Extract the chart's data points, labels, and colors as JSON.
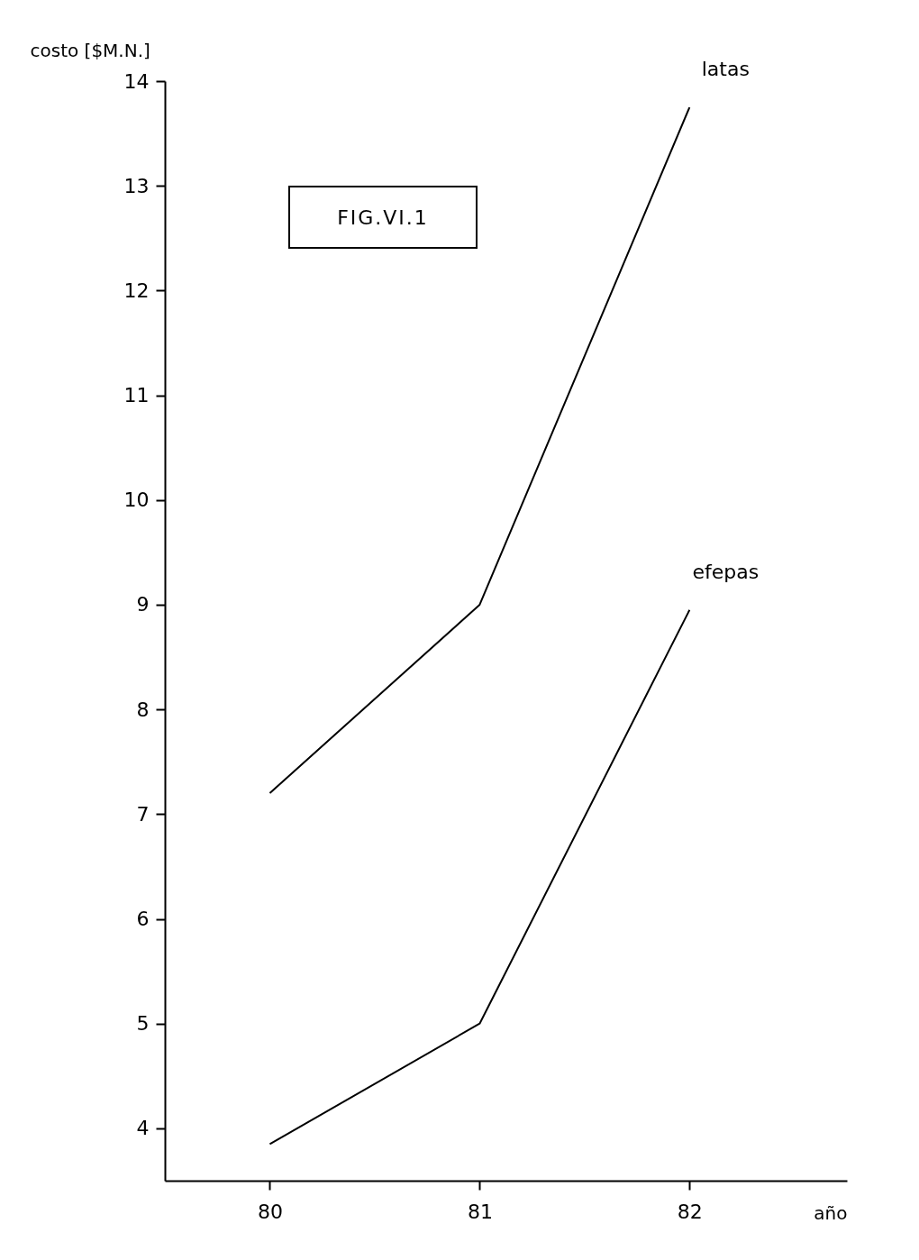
{
  "chart_data": {
    "type": "line",
    "ylabel": "costo [$M.N.]",
    "xlabel": "año",
    "annotations": [
      "FIG.VI.1"
    ],
    "x": [
      80,
      81,
      82
    ],
    "xlim": [
      79.5,
      82.75
    ],
    "xticks": [
      80,
      81,
      82
    ],
    "ylim": [
      3.5,
      14
    ],
    "yticks": [
      4,
      5,
      6,
      7,
      8,
      9,
      10,
      11,
      12,
      13,
      14
    ],
    "grid": false,
    "legend": false,
    "marker": "none",
    "line_style": "solid",
    "series": [
      {
        "name": "latas",
        "color": "#000000",
        "values": [
          7.2,
          9.0,
          13.75
        ]
      },
      {
        "name": "efepas",
        "color": "#000000",
        "values": [
          3.85,
          5.0,
          8.95
        ]
      }
    ]
  }
}
